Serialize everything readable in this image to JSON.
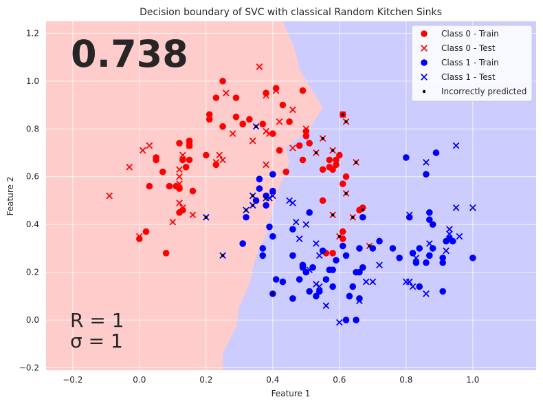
{
  "chart_data": {
    "type": "scatter",
    "title": "Decision boundary of SVC with classical Random Kitchen Sinks",
    "xlabel": "Feature 1",
    "ylabel": "Feature 2",
    "xlim": [
      -0.28,
      1.19
    ],
    "ylim": [
      -0.21,
      1.25
    ],
    "xticks": [
      -0.2,
      0.0,
      0.2,
      0.4,
      0.6,
      0.8,
      1.0
    ],
    "xtick_labels": [
      "−0.2",
      "0.0",
      "0.2",
      "0.4",
      "0.6",
      "0.8",
      "1.0"
    ],
    "yticks": [
      -0.2,
      0.0,
      0.2,
      0.4,
      0.6,
      0.8,
      1.0,
      1.2
    ],
    "ytick_labels": [
      "−0.2",
      "0.0",
      "0.2",
      "0.4",
      "0.6",
      "0.8",
      "1.0",
      "1.2"
    ],
    "grid": true,
    "score_label": "0.738",
    "param_R": "R = 1",
    "param_sigma": "σ = 1",
    "colors": {
      "class0": "#ff0000",
      "class1": "#0000ff",
      "region0": "#ffcccc",
      "region1": "#ccccff",
      "incorrect": "#000000"
    },
    "boundary": [
      [
        0.43,
        1.25
      ],
      [
        0.465,
        1.14
      ],
      [
        0.48,
        1.05
      ],
      [
        0.55,
        0.89
      ],
      [
        0.51,
        0.8
      ],
      [
        0.44,
        0.72
      ],
      [
        0.45,
        0.66
      ],
      [
        0.42,
        0.56
      ],
      [
        0.4,
        0.46
      ],
      [
        0.38,
        0.36
      ],
      [
        0.35,
        0.27
      ],
      [
        0.33,
        0.15
      ],
      [
        0.3,
        0.06
      ],
      [
        0.29,
        -0.03
      ],
      [
        0.25,
        -0.14
      ],
      [
        0.25,
        -0.21
      ]
    ],
    "legend": [
      {
        "label": "Class 0 - Train",
        "marker": "circle",
        "color": "#ff0000"
      },
      {
        "label": "Class 0 - Test",
        "marker": "x",
        "color": "#ff0000"
      },
      {
        "label": "Class 1 - Train",
        "marker": "circle",
        "color": "#0000ff"
      },
      {
        "label": "Class 1 - Test",
        "marker": "x",
        "color": "#0000ff"
      },
      {
        "label": "Incorrectly predicted",
        "marker": "dot",
        "color": "#000000"
      }
    ],
    "series": [
      {
        "name": "Class 0 - Train",
        "marker": "circle",
        "color": "#ff0000",
        "points": [
          [
            0.25,
            1.0
          ],
          [
            0.29,
            0.93
          ],
          [
            0.23,
            0.93
          ],
          [
            0.21,
            0.86
          ],
          [
            0.21,
            0.84
          ],
          [
            0.25,
            0.81
          ],
          [
            0.29,
            0.85
          ],
          [
            0.31,
            0.82
          ],
          [
            0.31,
            0.82
          ],
          [
            0.33,
            0.84
          ],
          [
            0.37,
            0.82
          ],
          [
            0.38,
            0.95
          ],
          [
            0.41,
            0.97
          ],
          [
            0.43,
            0.9
          ],
          [
            0.45,
            0.83
          ],
          [
            0.49,
            0.96
          ],
          [
            0.4,
            0.78
          ],
          [
            0.42,
            0.71
          ],
          [
            0.5,
            0.79
          ],
          [
            0.5,
            0.77
          ],
          [
            0.48,
            0.73
          ],
          [
            0.51,
            0.74
          ],
          [
            0.49,
            0.67
          ],
          [
            0.44,
            0.62
          ],
          [
            0.55,
            0.63
          ],
          [
            0.57,
            0.67
          ],
          [
            0.57,
            0.64
          ],
          [
            0.58,
            0.63
          ],
          [
            0.59,
            0.67
          ],
          [
            0.6,
            0.69
          ],
          [
            0.61,
            0.86
          ],
          [
            0.59,
            0.65
          ],
          [
            0.61,
            0.57
          ],
          [
            0.62,
            0.6
          ],
          [
            0.55,
            0.5
          ],
          [
            0.61,
            0.37
          ],
          [
            0.61,
            0.34
          ],
          [
            0.66,
            0.46
          ],
          [
            0.67,
            0.47
          ],
          [
            0.58,
            0.28
          ],
          [
            0.56,
            0.28
          ],
          [
            0.12,
            0.74
          ],
          [
            0.15,
            0.75
          ],
          [
            0.15,
            0.73
          ],
          [
            0.13,
            0.67
          ],
          [
            0.15,
            0.67
          ],
          [
            0.14,
            0.64
          ],
          [
            0.05,
            0.68
          ],
          [
            0.05,
            0.67
          ],
          [
            0.07,
            0.62
          ],
          [
            0.09,
            0.56
          ],
          [
            0.11,
            0.56
          ],
          [
            0.16,
            0.54
          ],
          [
            0.03,
            0.56
          ],
          [
            0.12,
            0.55
          ],
          [
            0.12,
            0.45
          ],
          [
            0.13,
            0.46
          ],
          [
            0.0,
            0.34
          ],
          [
            0.02,
            0.37
          ],
          [
            0.08,
            0.28
          ],
          [
            0.2,
            0.69
          ],
          [
            0.23,
            0.65
          ]
        ]
      },
      {
        "name": "Class 0 - Test",
        "marker": "x",
        "color": "#ff0000",
        "points": [
          [
            0.36,
            1.06
          ],
          [
            0.26,
            0.95
          ],
          [
            0.38,
            0.94
          ],
          [
            0.41,
            0.96
          ],
          [
            0.46,
            0.88
          ],
          [
            0.42,
            0.83
          ],
          [
            0.38,
            0.79
          ],
          [
            0.39,
            0.78
          ],
          [
            0.28,
            0.78
          ],
          [
            0.34,
            0.75
          ],
          [
            0.5,
            0.8
          ],
          [
            0.46,
            0.72
          ],
          [
            0.55,
            0.76
          ],
          [
            0.53,
            0.7
          ],
          [
            0.58,
            0.71
          ],
          [
            0.62,
            0.83
          ],
          [
            0.61,
            0.86
          ],
          [
            0.65,
            0.66
          ],
          [
            0.62,
            0.53
          ],
          [
            0.58,
            0.44
          ],
          [
            0.64,
            0.43
          ],
          [
            0.6,
            0.35
          ],
          [
            0.69,
            0.31
          ],
          [
            0.03,
            0.73
          ],
          [
            0.01,
            0.71
          ],
          [
            0.13,
            0.69
          ],
          [
            0.15,
            0.73
          ],
          [
            0.24,
            0.69
          ],
          [
            0.25,
            0.67
          ],
          [
            0.23,
            0.66
          ],
          [
            -0.03,
            0.64
          ],
          [
            0.12,
            0.63
          ],
          [
            0.12,
            0.6
          ],
          [
            0.12,
            0.57
          ],
          [
            -0.09,
            0.52
          ],
          [
            0.12,
            0.49
          ],
          [
            0.13,
            0.47
          ],
          [
            0.16,
            0.44
          ],
          [
            0.1,
            0.41
          ],
          [
            0.0,
            0.35
          ],
          [
            0.38,
            0.65
          ]
        ]
      },
      {
        "name": "Class 1 - Train",
        "marker": "circle",
        "color": "#0000ff",
        "points": [
          [
            0.36,
            0.59
          ],
          [
            0.36,
            0.55
          ],
          [
            0.38,
            0.52
          ],
          [
            0.4,
            0.54
          ],
          [
            0.4,
            0.61
          ],
          [
            0.35,
            0.5
          ],
          [
            0.38,
            0.48
          ],
          [
            0.39,
            0.39
          ],
          [
            0.4,
            0.35
          ],
          [
            0.37,
            0.3
          ],
          [
            0.37,
            0.27
          ],
          [
            0.32,
            0.43
          ],
          [
            0.31,
            0.32
          ],
          [
            0.41,
            0.17
          ],
          [
            0.4,
            0.11
          ],
          [
            0.43,
            0.16
          ],
          [
            0.46,
            0.09
          ],
          [
            0.46,
            0.38
          ],
          [
            0.46,
            0.27
          ],
          [
            0.48,
            0.17
          ],
          [
            0.49,
            0.23
          ],
          [
            0.49,
            0.22
          ],
          [
            0.5,
            0.2
          ],
          [
            0.51,
            0.12
          ],
          [
            0.51,
            0.45
          ],
          [
            0.52,
            0.22
          ],
          [
            0.53,
            0.1
          ],
          [
            0.54,
            0.12
          ],
          [
            0.55,
            0.29
          ],
          [
            0.56,
            0.17
          ],
          [
            0.57,
            0.21
          ],
          [
            0.58,
            0.14
          ],
          [
            0.58,
            0.21
          ],
          [
            0.59,
            0.25
          ],
          [
            0.61,
            0.31
          ],
          [
            0.62,
            0.27
          ],
          [
            0.63,
            0.1
          ],
          [
            0.62,
            0.0
          ],
          [
            0.64,
            0.14
          ],
          [
            0.65,
            0.0
          ],
          [
            0.65,
            0.2
          ],
          [
            0.66,
            0.2
          ],
          [
            0.66,
            0.3
          ],
          [
            0.66,
            0.09
          ],
          [
            0.67,
            0.22
          ],
          [
            0.67,
            0.43
          ],
          [
            0.7,
            0.3
          ],
          [
            0.72,
            0.33
          ],
          [
            0.76,
            0.3
          ],
          [
            0.78,
            0.26
          ],
          [
            0.8,
            0.68
          ],
          [
            0.81,
            0.43
          ],
          [
            0.82,
            0.28
          ],
          [
            0.83,
            0.24
          ],
          [
            0.84,
            0.3
          ],
          [
            0.84,
            0.14
          ],
          [
            0.86,
            0.61
          ],
          [
            0.87,
            0.45
          ],
          [
            0.87,
            0.42
          ],
          [
            0.88,
            0.4
          ],
          [
            0.87,
            0.27
          ],
          [
            0.88,
            0.3
          ],
          [
            0.89,
            0.7
          ],
          [
            0.91,
            0.26
          ],
          [
            0.91,
            0.24
          ],
          [
            0.92,
            0.33
          ],
          [
            0.93,
            0.34
          ],
          [
            0.94,
            0.33
          ],
          [
            0.91,
            0.12
          ],
          [
            1.0,
            0.26
          ],
          [
            0.86,
            0.24
          ]
        ]
      },
      {
        "name": "Class 1 - Test",
        "marker": "x",
        "color": "#0000ff",
        "points": [
          [
            0.35,
            0.81
          ],
          [
            0.2,
            0.43
          ],
          [
            0.25,
            0.27
          ],
          [
            0.32,
            0.46
          ],
          [
            0.34,
            0.48
          ],
          [
            0.34,
            0.52
          ],
          [
            0.38,
            0.51
          ],
          [
            0.39,
            0.51
          ],
          [
            0.4,
            0.52
          ],
          [
            0.45,
            0.5
          ],
          [
            0.46,
            0.49
          ],
          [
            0.47,
            0.41
          ],
          [
            0.48,
            0.34
          ],
          [
            0.5,
            0.4
          ],
          [
            0.53,
            0.32
          ],
          [
            0.54,
            0.27
          ],
          [
            0.53,
            0.15
          ],
          [
            0.54,
            0.14
          ],
          [
            0.51,
            0.21
          ],
          [
            0.56,
            0.06
          ],
          [
            0.6,
            -0.01
          ],
          [
            0.66,
            0.08
          ],
          [
            0.68,
            0.16
          ],
          [
            0.7,
            0.16
          ],
          [
            0.72,
            0.23
          ],
          [
            0.8,
            0.16
          ],
          [
            0.81,
            0.16
          ],
          [
            0.82,
            0.14
          ],
          [
            0.81,
            0.44
          ],
          [
            0.86,
            0.66
          ],
          [
            0.83,
            0.26
          ],
          [
            0.86,
            0.11
          ],
          [
            0.87,
            0.32
          ],
          [
            0.92,
            0.29
          ],
          [
            0.93,
            0.36
          ],
          [
            0.93,
            0.38
          ],
          [
            0.95,
            0.47
          ],
          [
            0.95,
            0.73
          ],
          [
            0.96,
            0.35
          ],
          [
            1.0,
            0.47
          ]
        ]
      },
      {
        "name": "Incorrectly predicted",
        "marker": "dot",
        "color": "#000000",
        "points": [
          [
            0.35,
            0.81
          ],
          [
            0.2,
            0.43
          ],
          [
            0.25,
            0.27
          ],
          [
            0.32,
            0.46
          ],
          [
            0.34,
            0.48
          ],
          [
            0.34,
            0.52
          ],
          [
            0.38,
            0.51
          ],
          [
            0.4,
            0.11
          ],
          [
            0.55,
            0.76
          ],
          [
            0.53,
            0.7
          ],
          [
            0.58,
            0.71
          ],
          [
            0.62,
            0.83
          ],
          [
            0.61,
            0.86
          ],
          [
            0.65,
            0.66
          ],
          [
            0.62,
            0.53
          ],
          [
            0.58,
            0.44
          ],
          [
            0.64,
            0.43
          ],
          [
            0.6,
            0.35
          ],
          [
            0.69,
            0.31
          ],
          [
            0.67,
            0.46
          ]
        ]
      }
    ]
  }
}
